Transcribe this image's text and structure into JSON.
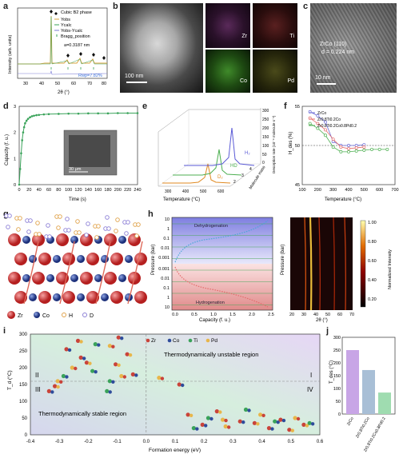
{
  "panel_labels": {
    "a": "a",
    "b": "b",
    "c": "c",
    "d": "d",
    "e": "e",
    "f": "f",
    "g": "g",
    "h": "h",
    "i": "i",
    "j": "j"
  },
  "colors": {
    "accent": "#d9a441",
    "green": "#3aa35a",
    "purple": "#8c7fd6",
    "red": "#c9433a",
    "blue": "#2e4c9b"
  },
  "panel_a": {
    "legend": [
      "Cubic B2 phase",
      "Yobs",
      "Ycalc",
      "Yobs-Ycalc",
      "Bragg_position"
    ],
    "lattice": "a=0.3187 nm",
    "rwp": "Rwp=7.82%",
    "ylabel": "Intensity (arb. units)",
    "xlabel": "2θ (°)",
    "xticks": [
      "30",
      "40",
      "50",
      "60",
      "70",
      "80"
    ]
  },
  "panel_b": {
    "scalebar": "100 nm",
    "maps": [
      "Zr",
      "Ti",
      "Co",
      "Pd"
    ]
  },
  "panel_c": {
    "annotation_1": "ZrCo (110)",
    "annotation_2": "d = 0.224 nm",
    "scalebar": "10 nm"
  },
  "chart_data": [
    {
      "type": "line",
      "panel": "d",
      "xlabel": "Time (s)",
      "ylabel": "Capacity (f. u.)",
      "xlim": [
        0,
        240
      ],
      "ylim": [
        0,
        3
      ],
      "xticks": [
        "0",
        "20",
        "40",
        "60",
        "80",
        "100",
        "120",
        "140",
        "160",
        "180",
        "200",
        "220",
        "240"
      ],
      "yticks": [
        "0",
        "1",
        "2",
        "3"
      ],
      "x": [
        0,
        2,
        4,
        6,
        8,
        10,
        12,
        15,
        18,
        22,
        26,
        30,
        35,
        40,
        50,
        60,
        80,
        100,
        120,
        140,
        160,
        180,
        200,
        220,
        240
      ],
      "y": [
        0,
        0.6,
        1.2,
        1.7,
        2.0,
        2.2,
        2.35,
        2.45,
        2.52,
        2.58,
        2.62,
        2.64,
        2.66,
        2.67,
        2.69,
        2.7,
        2.71,
        2.72,
        2.72,
        2.73,
        2.73,
        2.73,
        2.74,
        2.74,
        2.74
      ],
      "inset_scalebar": "30 μm"
    },
    {
      "type": "line",
      "panel": "e",
      "xlabel": "Temperature (°C)",
      "ylabel": "Desorption rate (10⁻⁹ molecule s⁻¹)",
      "zlabel": "Molecule mass",
      "xticks": [
        "300",
        "400",
        "500",
        "600"
      ],
      "zticks": [
        "2",
        "3",
        "4"
      ],
      "yticks": [
        "0",
        "50",
        "100",
        "150",
        "200",
        "250",
        "300"
      ],
      "series": [
        {
          "name": "H₂"
        },
        {
          "name": "HD"
        },
        {
          "name": "D₂"
        }
      ]
    },
    {
      "type": "line",
      "panel": "f",
      "xlabel": "Temperature (°C)",
      "ylabel": "H_des (%)",
      "xlim": [
        100,
        700
      ],
      "ylim": [
        45,
        55
      ],
      "xticks": [
        "100",
        "200",
        "300",
        "400",
        "500",
        "600",
        "700"
      ],
      "yticks": [
        "45",
        "50",
        "55"
      ],
      "series": [
        {
          "name": "ZrCo",
          "x": [
            150,
            200,
            250,
            300,
            350,
            400,
            450,
            500
          ],
          "y": [
            54.3,
            53.8,
            53.0,
            50.5,
            50.0,
            50.0,
            50.0,
            50.1
          ]
        },
        {
          "name": "Zr0.8Ti0.2Co",
          "x": [
            150,
            200,
            250,
            300,
            350,
            400,
            450,
            500
          ],
          "y": [
            53.5,
            52.8,
            52.0,
            50.8,
            49.8,
            49.6,
            49.7,
            49.8
          ]
        },
        {
          "name": "Zr0.8Ti0.2Co0.8Pd0.2",
          "x": [
            150,
            200,
            250,
            300,
            350,
            400,
            450,
            500,
            550,
            600,
            650
          ],
          "y": [
            52.8,
            52.2,
            51.3,
            49.8,
            49.2,
            49.2,
            49.3,
            49.4,
            49.5,
            49.5,
            49.5
          ]
        }
      ]
    },
    {
      "type": "line",
      "panel": "h",
      "xlabel": "Capacity (f. u.)",
      "ylabel": "Pressure (bar)",
      "xticks": [
        "0.0",
        "0.5",
        "1.0",
        "1.5",
        "2.0",
        "2.5"
      ],
      "yticks_top": [
        "10",
        "1",
        "0.1",
        "0.01",
        "0.001"
      ],
      "yticks_bottom": [
        "0.001",
        "0.01",
        "0.1",
        "1",
        "10"
      ],
      "annotations": [
        "Dehydrogenation",
        "Hydrogenation"
      ],
      "heatmap_xlabel": "2θ (°)",
      "heatmap_xticks": [
        "20",
        "30",
        "40",
        "50",
        "60",
        "70"
      ],
      "colorbar_label": "Normalized Intensity",
      "colorbar_ticks": [
        "1.00",
        "0.80",
        "0.60",
        "0.40",
        "0.20"
      ]
    },
    {
      "type": "scatter",
      "panel": "i",
      "xlabel": "Formation energy (eV)",
      "ylabel": "T_d (°C)",
      "xlim": [
        -0.4,
        0.6
      ],
      "ylim": [
        0,
        300
      ],
      "xticks": [
        "-0.4",
        "-0.3",
        "-0.2",
        "-0.1",
        "0.0",
        "0.1",
        "0.2",
        "0.3",
        "0.4",
        "0.5",
        "0.6"
      ],
      "yticks": [
        "0",
        "50",
        "100",
        "150",
        "200",
        "250",
        "300"
      ],
      "legend": [
        "Zr",
        "Co",
        "Ti",
        "Pd"
      ],
      "regions": [
        "Thermodynamically unstable region",
        "Thermodynamically stable region"
      ],
      "quadrants": [
        "I",
        "II",
        "III",
        "IV"
      ],
      "x": [
        -0.33,
        -0.31,
        -0.28,
        -0.25,
        -0.22,
        -0.2,
        -0.18,
        -0.3,
        -0.27,
        -0.23,
        -0.17,
        -0.12,
        -0.09,
        -0.06,
        -0.12,
        -0.08,
        -0.04,
        -0.1,
        -0.13,
        0.05,
        0.12,
        0.15,
        0.22,
        0.27,
        0.33,
        0.38,
        0.45,
        0.52,
        0.2,
        0.25,
        0.35,
        0.4,
        0.47,
        0.55,
        0.17,
        0.28,
        0.43,
        0.5,
        0.57
      ],
      "y": [
        130,
        145,
        175,
        200,
        230,
        215,
        190,
        160,
        255,
        280,
        270,
        265,
        290,
        240,
        160,
        175,
        180,
        210,
        130,
        170,
        150,
        60,
        50,
        45,
        40,
        35,
        40,
        50,
        30,
        70,
        75,
        60,
        45,
        30,
        20,
        25,
        20,
        15,
        35
      ]
    },
    {
      "type": "bar",
      "panel": "j",
      "ylabel": "T_des (°C)",
      "categories": [
        "ZrCo",
        "Zr0.8Ti0.2Co",
        "Zr0.8Ti0.2Co0.8Pd0.2"
      ],
      "values": [
        250,
        172,
        84
      ],
      "ylim": [
        0,
        300
      ],
      "yticks": [
        "0",
        "50",
        "100",
        "150",
        "200",
        "250",
        "300"
      ],
      "colors": [
        "#c8a5e6",
        "#a8bfd6",
        "#9fdcb0"
      ]
    }
  ],
  "panel_g": {
    "legend": [
      "Zr",
      "Co",
      "H",
      "D"
    ]
  }
}
